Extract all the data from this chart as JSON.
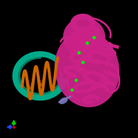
{
  "background_color": "#000000",
  "figsize": [
    2.0,
    2.0
  ],
  "dpi": 100,
  "protein_magenta": "#CC2288",
  "dna_teal": "#00AA88",
  "dna_orange": "#CC6600",
  "small_purple": "#7777BB",
  "green_dots": "#00EE00",
  "axis_green": "#00CC00",
  "axis_blue": "#2244FF",
  "axis_red": "#CC0000"
}
